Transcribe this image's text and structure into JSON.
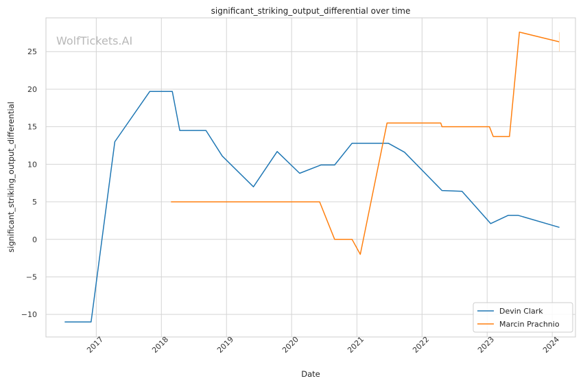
{
  "chart_data": {
    "type": "line",
    "title": "significant_striking_output_differential over time",
    "xlabel": "Date",
    "ylabel": "significant_striking_output_differential",
    "watermark": "WolfTickets.AI",
    "x_ticks": [
      "2017",
      "2018",
      "2019",
      "2020",
      "2021",
      "2022",
      "2023",
      "2024"
    ],
    "y_ticks": [
      -10,
      -5,
      0,
      5,
      10,
      15,
      20,
      25
    ],
    "xlim": [
      "2016-03-25",
      "2024-05-10"
    ],
    "ylim": [
      -13,
      29.5
    ],
    "grid": true,
    "legend_position": "lower-right",
    "series": [
      {
        "name": "Devin Clark",
        "color": "#1f77b4",
        "points": [
          [
            "2016-07-08",
            -11.0
          ],
          [
            "2016-12-03",
            -11.0
          ],
          [
            "2017-04-15",
            13.0
          ],
          [
            "2017-10-28",
            19.7
          ],
          [
            "2018-03-03",
            19.7
          ],
          [
            "2018-04-14",
            14.5
          ],
          [
            "2018-09-08",
            14.5
          ],
          [
            "2018-12-08",
            11.1
          ],
          [
            "2019-06-01",
            7.0
          ],
          [
            "2019-10-12",
            11.7
          ],
          [
            "2020-02-15",
            8.8
          ],
          [
            "2020-06-13",
            9.9
          ],
          [
            "2020-08-29",
            9.9
          ],
          [
            "2020-12-05",
            12.8
          ],
          [
            "2021-06-26",
            12.8
          ],
          [
            "2021-09-25",
            11.6
          ],
          [
            "2022-04-23",
            6.5
          ],
          [
            "2022-08-13",
            6.4
          ],
          [
            "2023-01-21",
            2.1
          ],
          [
            "2023-04-29",
            3.2
          ],
          [
            "2023-06-24",
            3.2
          ],
          [
            "2024-02-10",
            1.6
          ]
        ]
      },
      {
        "name": "Marcin Prachnio",
        "color": "#ff7f0e",
        "points": [
          [
            "2018-02-24",
            5.0
          ],
          [
            "2020-06-06",
            5.0
          ],
          [
            "2020-08-29",
            0.0
          ],
          [
            "2020-12-05",
            0.0
          ],
          [
            "2021-01-20",
            -2.0
          ],
          [
            "2021-06-19",
            15.5
          ],
          [
            "2022-04-16",
            15.5
          ],
          [
            "2022-04-23",
            15.0
          ],
          [
            "2023-01-14",
            15.0
          ],
          [
            "2023-02-04",
            13.7
          ],
          [
            "2023-05-06",
            13.7
          ],
          [
            "2023-07-01",
            27.6
          ],
          [
            "2024-02-10",
            26.3
          ]
        ]
      }
    ]
  }
}
